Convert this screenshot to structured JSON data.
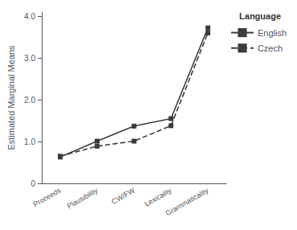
{
  "chart_data": {
    "type": "line",
    "categories": [
      "Proceeds",
      "Plausibility",
      "CW/FW",
      "Lexicality",
      "Grammaticality"
    ],
    "series": [
      {
        "name": "English",
        "color": "#3c3c3c",
        "marker": "square",
        "line_style": "solid",
        "values": [
          0.63,
          1.01,
          1.37,
          1.55,
          3.72
        ]
      },
      {
        "name": "Czech",
        "color": "#3c3c3c",
        "marker": "square",
        "line_style": "dashed",
        "values": [
          0.65,
          0.89,
          1.01,
          1.38,
          3.6
        ]
      }
    ],
    "ylabel": "Estimated Marginal Means",
    "legend_title": "Language",
    "ylim": [
      0,
      4.1
    ],
    "yticks": [
      0,
      {
        "value": 1.0,
        "label": "1.0"
      },
      {
        "value": 2.0,
        "label": "2.0"
      },
      {
        "value": 3.0,
        "label": "3.0"
      },
      {
        "value": 4.0,
        "label": "4.0"
      }
    ],
    "grid": false,
    "legend": "upper right"
  }
}
